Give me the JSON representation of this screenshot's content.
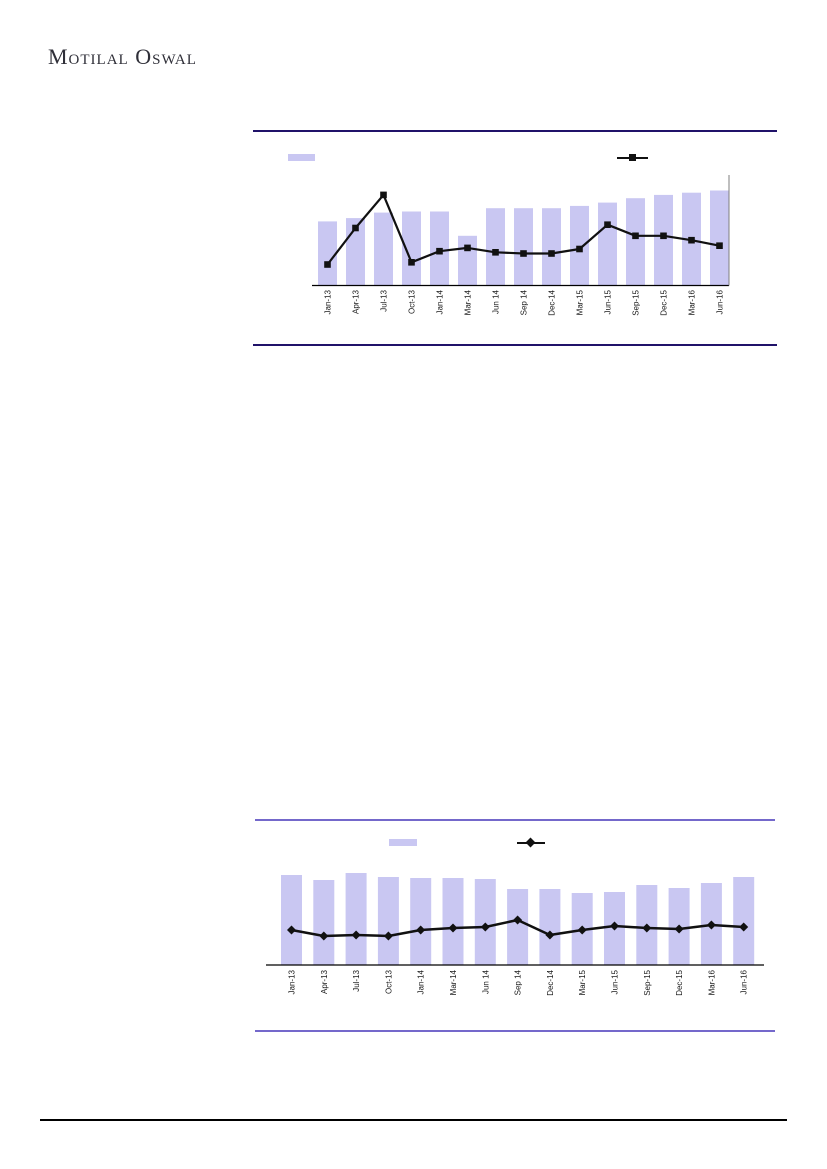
{
  "brand": {
    "name": "Motilal Oswal"
  },
  "colors": {
    "bar_fill": "#c9c7f2",
    "line_stroke": "#111111",
    "chart1_rule": "#201269",
    "chart2_rule": "#7468cb",
    "axis_line": "#000000",
    "right_axis_line": "#7f7f7f",
    "label_text": "#1a1a1a",
    "footer_rule": "#000000"
  },
  "chart_data": [
    {
      "id": "chart1",
      "type": "bar",
      "subtype": "bar-with-line-overlay",
      "title": "",
      "xlabel": "",
      "ylabel": "",
      "categories": [
        "Jan-13",
        "Apr-13",
        "Jul-13",
        "Oct-13",
        "Jan-14",
        "Mar-14",
        "Jun 14",
        "Sep 14",
        "Dec-14",
        "Mar-15",
        "Jun-15",
        "Sep-15",
        "Dec-15",
        "Mar-16",
        "Jun-16"
      ],
      "series": [
        {
          "name": "bars",
          "type": "bar",
          "marker": "none",
          "values": [
            58,
            61,
            66,
            67,
            67,
            45,
            70,
            70,
            70,
            72,
            75,
            79,
            82,
            84,
            86
          ]
        },
        {
          "name": "line",
          "type": "line",
          "marker": "square",
          "values": [
            19,
            52,
            82,
            21,
            31,
            34,
            30,
            29,
            29,
            33,
            55,
            45,
            45,
            41,
            36
          ]
        }
      ],
      "ylim": [
        0,
        100
      ],
      "value_axis_labels_visible": false,
      "grid": false,
      "legend": {
        "position": "top",
        "entries": [
          "",
          ""
        ],
        "swatches": [
          "bar",
          "line-square"
        ]
      }
    },
    {
      "id": "chart2",
      "type": "bar",
      "subtype": "bar-with-line-overlay",
      "title": "",
      "xlabel": "",
      "ylabel": "",
      "categories": [
        "Jan-13",
        "Apr-13",
        "Jul-13",
        "Oct-13",
        "Jan-14",
        "Mar-14",
        "Jun 14",
        "Sep 14",
        "Dec-14",
        "Mar-15",
        "Jun-15",
        "Sep-15",
        "Dec-15",
        "Mar-16",
        "Jun-16"
      ],
      "series": [
        {
          "name": "bars",
          "type": "bar",
          "marker": "none",
          "values": [
            90,
            85,
            92,
            88,
            87,
            87,
            86,
            76,
            76,
            72,
            73,
            80,
            77,
            82,
            88
          ]
        },
        {
          "name": "line",
          "type": "line",
          "marker": "diamond",
          "values": [
            35,
            29,
            30,
            29,
            35,
            37,
            38,
            45,
            30,
            35,
            39,
            37,
            36,
            40,
            38
          ]
        }
      ],
      "ylim": [
        0,
        100
      ],
      "value_axis_labels_visible": false,
      "grid": false,
      "legend": {
        "position": "top",
        "entries": [
          "",
          ""
        ],
        "swatches": [
          "bar",
          "line-diamond"
        ]
      }
    }
  ]
}
